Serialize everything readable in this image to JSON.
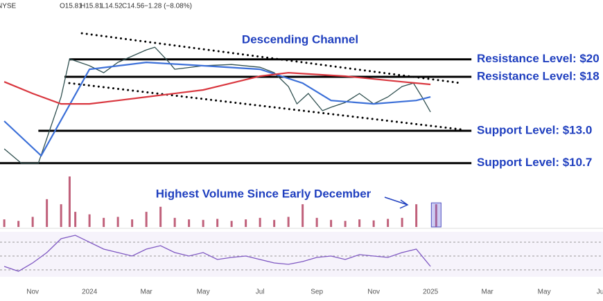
{
  "header": {
    "exchange": "NYSE",
    "quote": [
      "O15.81",
      "H15.81",
      "L14.52",
      "C14.56",
      "−1.28 (−8.08%)"
    ]
  },
  "chart_data": [
    {
      "type": "line",
      "annotation": "Descending Channel",
      "log_scale": true,
      "ylim": [
        10.08,
        28.6
      ],
      "xlim": [
        -0.15,
        21.07
      ],
      "xticks": [
        {
          "value": 1,
          "label": "Nov"
        },
        {
          "value": 3,
          "label": "2024"
        },
        {
          "value": 5,
          "label": "Mar"
        },
        {
          "value": 7,
          "label": "May"
        },
        {
          "value": 9,
          "label": "Jul"
        },
        {
          "value": 11,
          "label": "Sep"
        },
        {
          "value": 13,
          "label": "Nov"
        },
        {
          "value": 15,
          "label": "2025"
        },
        {
          "value": 17,
          "label": "Mar"
        },
        {
          "value": 19,
          "label": "May"
        },
        {
          "value": 21,
          "label": "Jul"
        }
      ],
      "series": [
        {
          "color": "#2f4f4f",
          "x": [
            0,
            0.6,
            1.2,
            1.5,
            2,
            2.3,
            3,
            3.5,
            4,
            5,
            5.3,
            5.8,
            6,
            7,
            8,
            9,
            9.5,
            10,
            10.3,
            10.7,
            11.2,
            11.5,
            12,
            12.5,
            13,
            13.5,
            14,
            14.4,
            14.7,
            15
          ],
          "values": [
            11.66,
            10.69,
            10.69,
            12.42,
            15.94,
            20.05,
            19.24,
            18.45,
            19.64,
            21.17,
            21.52,
            19.64,
            18.84,
            19.24,
            19.39,
            19.07,
            18.45,
            16.98,
            15.29,
            16.28,
            14.67,
            14.98,
            15.42,
            16.28,
            15.29,
            15.94,
            16.98,
            17.33,
            15.94,
            14.56
          ]
        },
        {
          "color": "#3b6fd8",
          "x": [
            0,
            1.3,
            3,
            5,
            7,
            9,
            10.5,
            11.5,
            13,
            14.5,
            15
          ],
          "values": [
            13.78,
            11.19,
            18.84,
            19.64,
            19.24,
            18.84,
            17.33,
            15.61,
            15.29,
            15.61,
            15.94
          ]
        },
        {
          "color": "#d9363e",
          "x": [
            0,
            1,
            2,
            3,
            4,
            5,
            7,
            9,
            10,
            12,
            14,
            15
          ],
          "values": [
            17.47,
            16.28,
            15.29,
            15.29,
            15.61,
            15.94,
            16.63,
            18.07,
            18.45,
            18.07,
            17.47,
            17.19
          ]
        }
      ],
      "trendlines": [
        {
          "x": [
            2.73,
            16.07
          ],
          "values": [
            23.4,
            17.33
          ]
        },
        {
          "x": [
            2.29,
            16.07
          ],
          "values": [
            17.33,
            13.11
          ]
        }
      ],
      "levels": [
        {
          "label": "Resistance Level: $20",
          "value": 20,
          "x": [
            2.29,
            16.44
          ]
        },
        {
          "label": "Resistance Level: $18",
          "value": 18,
          "x": [
            2.12,
            16.44
          ]
        },
        {
          "label": "Support Level: $13.0",
          "value": 13,
          "x": [
            1.2,
            16.44
          ]
        },
        {
          "label": "Support Level: $10.7",
          "value": 10.7,
          "x": [
            -0.15,
            16.44
          ]
        }
      ]
    },
    {
      "type": "bar",
      "annotation": "Highest Volume Since Early December",
      "color": "#c0607a",
      "ylim": [
        0,
        100
      ],
      "x": [
        0,
        0.5,
        1,
        1.5,
        2,
        2.3,
        2.5,
        3,
        3.5,
        4,
        4.5,
        5,
        5.5,
        6,
        6.5,
        7,
        7.5,
        8,
        8.5,
        9,
        9.5,
        10,
        10.5,
        11,
        11.5,
        12,
        12.5,
        13,
        13.5,
        14,
        14.5,
        15.2
      ],
      "values": [
        15,
        12,
        20,
        55,
        45,
        100,
        30,
        25,
        18,
        20,
        15,
        30,
        40,
        18,
        15,
        14,
        16,
        12,
        15,
        18,
        14,
        20,
        45,
        18,
        14,
        12,
        15,
        13,
        16,
        18,
        45,
        45
      ]
    },
    {
      "type": "line",
      "color": "#7e57c2",
      "ylim": [
        20,
        85
      ],
      "guides": [
        30,
        50,
        70
      ],
      "x": [
        0,
        0.5,
        1,
        1.5,
        2,
        2.5,
        3,
        3.5,
        4,
        4.5,
        5,
        5.5,
        6,
        6.5,
        7,
        7.5,
        8,
        8.5,
        9,
        9.5,
        10,
        10.5,
        11,
        11.5,
        12,
        12.5,
        13,
        13.5,
        14,
        14.5,
        15
      ],
      "values": [
        35,
        28,
        40,
        55,
        75,
        80,
        70,
        60,
        55,
        50,
        60,
        65,
        55,
        50,
        55,
        45,
        48,
        50,
        45,
        40,
        38,
        42,
        48,
        50,
        45,
        52,
        50,
        48,
        55,
        60,
        35
      ]
    }
  ]
}
